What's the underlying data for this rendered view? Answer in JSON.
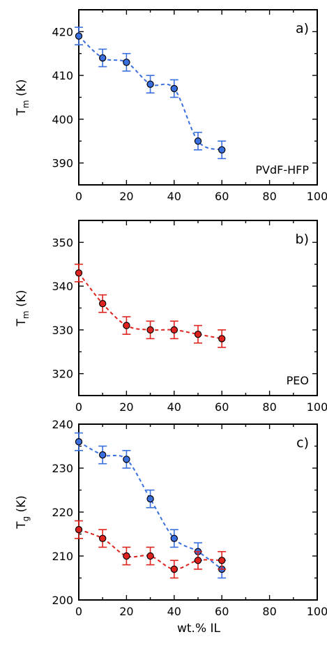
{
  "figure": {
    "shared_xlabel": "wt.% IL"
  },
  "chart_data": [
    {
      "type": "scatter",
      "panel_label": "a)",
      "annotation": "PVdF-HFP",
      "ylabel": "T",
      "ylabel_sub": "m",
      "ylabel_unit": " (K)",
      "xlim": [
        0,
        100
      ],
      "ylim": [
        385,
        425
      ],
      "xticks": [
        0,
        20,
        40,
        60,
        80,
        100
      ],
      "yticks": [
        390,
        400,
        410,
        420
      ],
      "series": [
        {
          "color": "#3a6fe0",
          "x": [
            0,
            10,
            20,
            30,
            40,
            50,
            60
          ],
          "y": [
            419,
            414,
            413,
            408,
            407,
            395,
            393
          ],
          "error": [
            2,
            2,
            2,
            2,
            2,
            2,
            2
          ],
          "fit_line": "dashed"
        }
      ]
    },
    {
      "type": "scatter",
      "panel_label": "b)",
      "annotation": "PEO",
      "ylabel": "T",
      "ylabel_sub": "m",
      "ylabel_unit": " (K)",
      "xlim": [
        0,
        100
      ],
      "ylim": [
        315,
        355
      ],
      "xticks": [
        0,
        20,
        40,
        60,
        80,
        100
      ],
      "yticks": [
        320,
        330,
        340,
        350
      ],
      "series": [
        {
          "color": "#e0231e",
          "x": [
            0,
            10,
            20,
            30,
            40,
            50,
            60
          ],
          "y": [
            343,
            336,
            331,
            330,
            330,
            329,
            328
          ],
          "error": [
            2,
            2,
            2,
            2,
            2,
            2,
            2
          ],
          "fit_line": "dashed"
        }
      ]
    },
    {
      "type": "scatter",
      "panel_label": "c)",
      "annotation": "",
      "ylabel": "T",
      "ylabel_sub": "g",
      "ylabel_unit": " (K)",
      "xlim": [
        0,
        100
      ],
      "ylim": [
        200,
        240
      ],
      "xticks": [
        0,
        20,
        40,
        60,
        80,
        100
      ],
      "yticks": [
        200,
        210,
        220,
        230,
        240
      ],
      "series": [
        {
          "color": "#3a6fe0",
          "x": [
            0,
            10,
            20,
            30,
            40,
            50,
            60
          ],
          "y": [
            236,
            233,
            232,
            223,
            214,
            211,
            207
          ],
          "error": [
            2,
            2,
            2,
            2,
            2,
            2,
            2
          ],
          "fit_line": "dashed"
        },
        {
          "color": "#e0231e",
          "x": [
            0,
            10,
            20,
            30,
            40,
            50,
            60
          ],
          "y": [
            216,
            214,
            210,
            210,
            207,
            209,
            209
          ],
          "error": [
            2,
            2,
            2,
            2,
            2,
            2,
            2
          ],
          "fit_line": "dashed"
        }
      ]
    }
  ]
}
